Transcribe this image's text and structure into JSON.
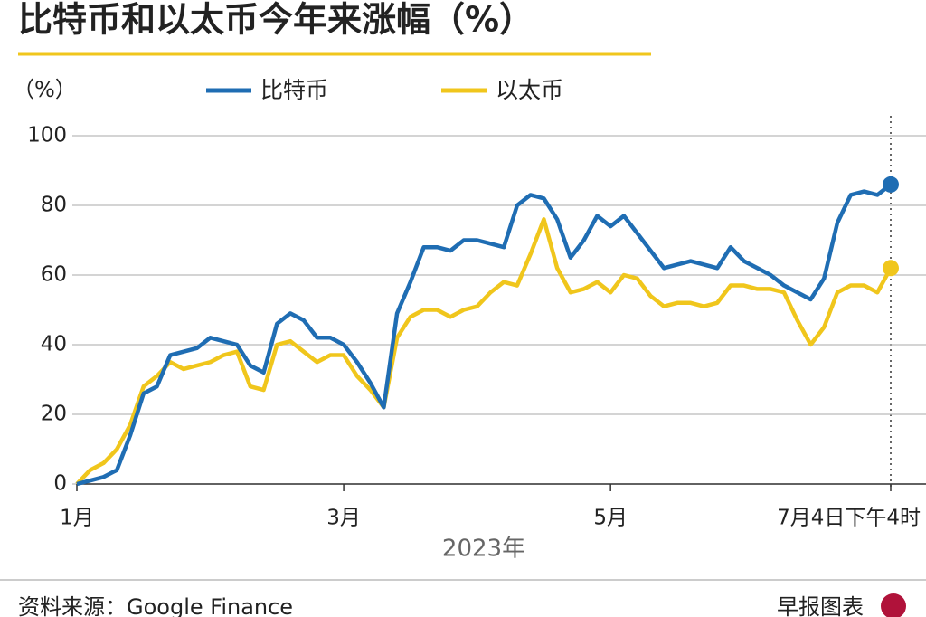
{
  "chart_data": {
    "type": "line",
    "title": "比特币和以太币今年来涨幅（%）",
    "y_unit": "（%）",
    "xlabel": "2023年",
    "source": "资料来源：Google Finance",
    "credit": "早报图表",
    "categories": [
      "1月",
      null,
      null,
      null,
      null,
      null,
      null,
      null,
      null,
      null,
      null,
      null,
      null,
      null,
      null,
      null,
      null,
      null,
      null,
      null,
      "3月",
      null,
      null,
      null,
      null,
      null,
      null,
      null,
      null,
      null,
      null,
      null,
      null,
      null,
      null,
      null,
      null,
      null,
      null,
      null,
      "5月",
      null,
      null,
      null,
      null,
      null,
      null,
      null,
      null,
      null,
      null,
      null,
      null,
      null,
      null,
      null,
      null,
      null,
      null,
      null,
      null,
      "7月4日下午4时"
    ],
    "series": [
      {
        "name": "比特币",
        "color": "#1f6db3",
        "values": [
          0,
          1,
          2,
          4,
          14,
          26,
          28,
          37,
          38,
          39,
          42,
          41,
          40,
          34,
          32,
          46,
          49,
          47,
          42,
          42,
          40,
          35,
          29,
          22,
          49,
          58,
          68,
          68,
          67,
          70,
          70,
          69,
          68,
          80,
          83,
          82,
          76,
          65,
          70,
          77,
          74,
          77,
          72,
          67,
          62,
          63,
          64,
          63,
          62,
          68,
          64,
          62,
          60,
          57,
          55,
          53,
          59,
          75,
          83,
          84,
          83,
          86
        ]
      },
      {
        "name": "以太币",
        "color": "#f0c61c",
        "values": [
          0,
          4,
          6,
          10,
          17,
          28,
          31,
          35,
          33,
          34,
          35,
          37,
          38,
          28,
          27,
          40,
          41,
          38,
          35,
          37,
          37,
          31,
          27,
          22,
          42,
          48,
          50,
          50,
          48,
          50,
          51,
          55,
          58,
          57,
          66,
          76,
          62,
          55,
          56,
          58,
          55,
          60,
          59,
          54,
          51,
          52,
          52,
          51,
          52,
          57,
          57,
          56,
          56,
          55,
          47,
          40,
          45,
          55,
          57,
          57,
          55,
          62
        ]
      }
    ],
    "ylim": [
      0,
      100
    ],
    "yticks": [
      0,
      20,
      40,
      60,
      80,
      100
    ],
    "grid": true,
    "legend": "top"
  }
}
